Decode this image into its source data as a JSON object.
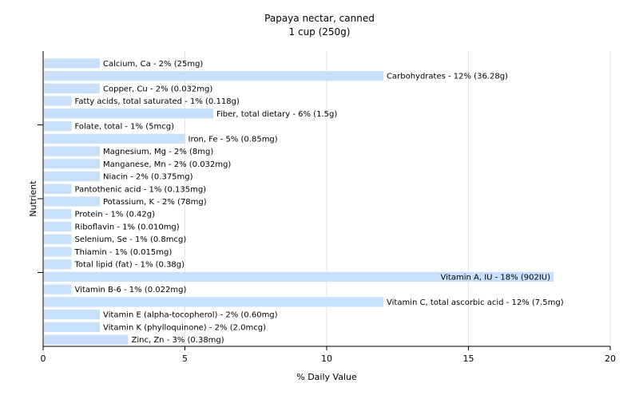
{
  "chart_data": {
    "type": "bar",
    "orientation": "horizontal",
    "title": "Papaya nectar, canned",
    "subtitle": "1 cup (250g)",
    "xlabel": "% Daily Value",
    "ylabel": "Nutrient",
    "xlim": [
      0,
      20
    ],
    "xticks": [
      0,
      5,
      10,
      15,
      20
    ],
    "grid": true,
    "bar_color": "#c8e0fa",
    "grid_color": "#e6e6e6",
    "bars": [
      {
        "name": "Calcium, Ca",
        "value": 2,
        "label": "Calcium, Ca - 2% (25mg)"
      },
      {
        "name": "Carbohydrates",
        "value": 12,
        "label": "Carbohydrates - 12% (36.28g)"
      },
      {
        "name": "Copper, Cu",
        "value": 2,
        "label": "Copper, Cu - 2% (0.032mg)"
      },
      {
        "name": "Fatty acids, total saturated",
        "value": 1,
        "label": "Fatty acids, total saturated - 1% (0.118g)"
      },
      {
        "name": "Fiber, total dietary",
        "value": 6,
        "label": "Fiber, total dietary - 6% (1.5g)"
      },
      {
        "name": "Folate, total",
        "value": 1,
        "label": "Folate, total - 1% (5mcg)"
      },
      {
        "name": "Iron, Fe",
        "value": 5,
        "label": "Iron, Fe - 5% (0.85mg)"
      },
      {
        "name": "Magnesium, Mg",
        "value": 2,
        "label": "Magnesium, Mg - 2% (8mg)"
      },
      {
        "name": "Manganese, Mn",
        "value": 2,
        "label": "Manganese, Mn - 2% (0.032mg)"
      },
      {
        "name": "Niacin",
        "value": 2,
        "label": "Niacin - 2% (0.375mg)"
      },
      {
        "name": "Pantothenic acid",
        "value": 1,
        "label": "Pantothenic acid - 1% (0.135mg)"
      },
      {
        "name": "Potassium, K",
        "value": 2,
        "label": "Potassium, K - 2% (78mg)"
      },
      {
        "name": "Protein",
        "value": 1,
        "label": "Protein - 1% (0.42g)"
      },
      {
        "name": "Riboflavin",
        "value": 1,
        "label": "Riboflavin - 1% (0.010mg)"
      },
      {
        "name": "Selenium, Se",
        "value": 1,
        "label": "Selenium, Se - 1% (0.8mcg)"
      },
      {
        "name": "Thiamin",
        "value": 1,
        "label": "Thiamin - 1% (0.015mg)"
      },
      {
        "name": "Total lipid (fat)",
        "value": 1,
        "label": "Total lipid (fat) - 1% (0.38g)"
      },
      {
        "name": "Vitamin A, IU",
        "value": 18,
        "label": "Vitamin A, IU - 18% (902IU)"
      },
      {
        "name": "Vitamin B-6",
        "value": 1,
        "label": "Vitamin B-6 - 1% (0.022mg)"
      },
      {
        "name": "Vitamin C, total ascorbic acid",
        "value": 12,
        "label": "Vitamin C, total ascorbic acid - 12% (7.5mg)"
      },
      {
        "name": "Vitamin E (alpha-tocopherol)",
        "value": 2,
        "label": "Vitamin E (alpha-tocopherol) - 2% (0.60mg)"
      },
      {
        "name": "Vitamin K (phylloquinone)",
        "value": 2,
        "label": "Vitamin K (phylloquinone) - 2% (2.0mcg)"
      },
      {
        "name": "Zinc, Zn",
        "value": 3,
        "label": "Zinc, Zn - 3% (0.38mg)"
      }
    ]
  }
}
